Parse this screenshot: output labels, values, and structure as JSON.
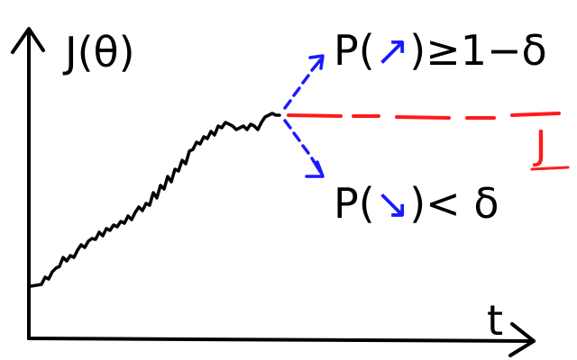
{
  "diagram": {
    "y_axis_label": "J(θ)",
    "x_axis_label": "t",
    "threshold_label": "J",
    "upper_branch": {
      "prefix": "P(",
      "arrow": "↗",
      "suffix": ")≥1−δ"
    },
    "lower_branch": {
      "prefix": "P(",
      "arrow": "↘",
      "suffix": ")< δ"
    },
    "colors": {
      "ink": "#000000",
      "branch": "#1a1aff",
      "threshold": "#ff1a1a"
    }
  }
}
